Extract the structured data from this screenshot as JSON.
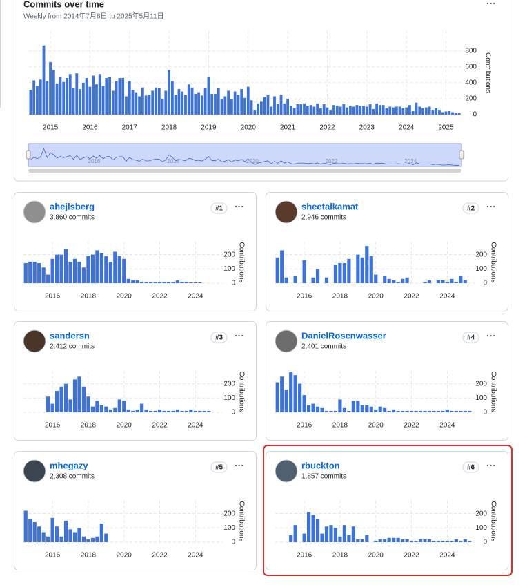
{
  "chart_data": [
    {
      "type": "bar",
      "title": "Commits over time",
      "subtitle": "Weekly from 2014年7月6日 to 2025年5月11日",
      "y_label": "Contributions",
      "color": "#3d72d8",
      "ylim": [
        0,
        1050
      ],
      "yticks": [
        0,
        200,
        400,
        600,
        800
      ],
      "grid": true,
      "navigator_ticks": [
        "2016",
        "2018",
        "2020",
        "2022",
        "2024"
      ],
      "categories": [
        null,
        null,
        null,
        null,
        null,
        null,
        "2015",
        null,
        null,
        null,
        null,
        null,
        null,
        null,
        null,
        null,
        null,
        null,
        "2016",
        null,
        null,
        null,
        null,
        null,
        null,
        null,
        null,
        null,
        null,
        null,
        "2017",
        null,
        null,
        null,
        null,
        null,
        null,
        null,
        null,
        null,
        null,
        null,
        "2018",
        null,
        null,
        null,
        null,
        null,
        null,
        null,
        null,
        null,
        null,
        null,
        "2019",
        null,
        null,
        null,
        null,
        null,
        null,
        null,
        null,
        null,
        null,
        null,
        "2020",
        null,
        null,
        null,
        null,
        null,
        null,
        null,
        null,
        null,
        null,
        null,
        "2021",
        null,
        null,
        null,
        null,
        null,
        null,
        null,
        null,
        null,
        null,
        null,
        "2022",
        null,
        null,
        null,
        null,
        null,
        null,
        null,
        null,
        null,
        null,
        null,
        "2023",
        null,
        null,
        null,
        null,
        null,
        null,
        null,
        null,
        null,
        null,
        null,
        "2024",
        null,
        null,
        null,
        null,
        null,
        null,
        null,
        null,
        null,
        null,
        null,
        "2025",
        null,
        null,
        null,
        null
      ],
      "values": [
        310,
        430,
        360,
        440,
        870,
        420,
        660,
        560,
        390,
        470,
        410,
        460,
        510,
        330,
        520,
        320,
        400,
        460,
        350,
        490,
        380,
        510,
        360,
        460,
        470,
        300,
        420,
        460,
        460,
        230,
        420,
        310,
        280,
        230,
        340,
        240,
        250,
        300,
        340,
        330,
        200,
        300,
        560,
        420,
        250,
        320,
        290,
        250,
        380,
        340,
        260,
        280,
        240,
        330,
        470,
        260,
        260,
        330,
        190,
        230,
        300,
        190,
        290,
        250,
        320,
        210,
        350,
        180,
        60,
        140,
        170,
        220,
        250,
        100,
        230,
        130,
        250,
        140,
        200,
        110,
        80,
        130,
        130,
        140,
        110,
        120,
        100,
        140,
        80,
        130,
        90,
        60,
        120,
        110,
        100,
        130,
        90,
        110,
        100,
        120,
        110,
        110,
        100,
        130,
        70,
        140,
        120,
        120,
        80,
        100,
        90,
        100,
        100,
        80,
        90,
        120,
        50,
        150,
        100,
        80,
        90,
        100,
        60,
        80,
        60,
        30,
        40,
        50,
        30,
        20,
        20
      ]
    },
    {
      "type": "bar",
      "title": "ahejlsberg",
      "subtitle": "3,860 commits",
      "rank": "#1",
      "y_label": "Contributions",
      "color": "#3d72d8",
      "ylim": [
        0,
        290
      ],
      "yticks": [
        0,
        100,
        200
      ],
      "grid": true,
      "categories": [
        null,
        null,
        null,
        null,
        null,
        null,
        "2016",
        null,
        null,
        null,
        null,
        null,
        null,
        null,
        "2018",
        null,
        null,
        null,
        null,
        null,
        null,
        null,
        "2020",
        null,
        null,
        null,
        null,
        null,
        null,
        null,
        "2022",
        null,
        null,
        null,
        null,
        null,
        null,
        null,
        "2024",
        null,
        null,
        null,
        null,
        null
      ],
      "values": [
        140,
        150,
        150,
        140,
        110,
        60,
        170,
        200,
        200,
        240,
        150,
        170,
        150,
        110,
        190,
        200,
        230,
        210,
        190,
        150,
        220,
        190,
        170,
        30,
        20,
        20,
        10,
        10,
        10,
        10,
        10,
        10,
        10,
        10,
        20,
        10,
        10,
        5,
        5,
        5,
        0,
        0,
        0,
        0
      ]
    },
    {
      "type": "bar",
      "title": "sheetalkamat",
      "subtitle": "2,946 commits",
      "rank": "#2",
      "y_label": "Contributions",
      "color": "#3d72d8",
      "ylim": [
        0,
        290
      ],
      "yticks": [
        0,
        100,
        200
      ],
      "grid": true,
      "categories": [
        null,
        null,
        null,
        null,
        null,
        null,
        "2016",
        null,
        null,
        null,
        null,
        null,
        null,
        null,
        "2018",
        null,
        null,
        null,
        null,
        null,
        null,
        null,
        "2020",
        null,
        null,
        null,
        null,
        null,
        null,
        null,
        "2022",
        null,
        null,
        null,
        null,
        null,
        null,
        null,
        "2024",
        null,
        null,
        null,
        null,
        null
      ],
      "values": [
        180,
        230,
        40,
        0,
        50,
        0,
        160,
        0,
        40,
        100,
        0,
        40,
        0,
        130,
        140,
        140,
        170,
        0,
        200,
        180,
        260,
        190,
        60,
        0,
        50,
        30,
        20,
        10,
        30,
        40,
        0,
        0,
        0,
        10,
        20,
        0,
        20,
        20,
        10,
        30,
        10,
        50,
        20,
        0
      ]
    },
    {
      "type": "bar",
      "title": "sandersn",
      "subtitle": "2,412 commits",
      "rank": "#3",
      "y_label": "Contributions",
      "color": "#3d72d8",
      "ylim": [
        0,
        290
      ],
      "yticks": [
        0,
        100,
        200
      ],
      "grid": true,
      "categories": [
        null,
        null,
        null,
        null,
        null,
        null,
        "2016",
        null,
        null,
        null,
        null,
        null,
        null,
        null,
        "2018",
        null,
        null,
        null,
        null,
        null,
        null,
        null,
        "2020",
        null,
        null,
        null,
        null,
        null,
        null,
        null,
        "2022",
        null,
        null,
        null,
        null,
        null,
        null,
        null,
        "2024",
        null,
        null,
        null,
        null,
        null
      ],
      "values": [
        0,
        0,
        0,
        0,
        0,
        110,
        60,
        150,
        180,
        200,
        90,
        230,
        250,
        180,
        110,
        40,
        80,
        50,
        40,
        20,
        30,
        90,
        80,
        20,
        10,
        20,
        60,
        20,
        10,
        10,
        20,
        10,
        10,
        10,
        20,
        10,
        10,
        20,
        10,
        10,
        10,
        10,
        0,
        0
      ]
    },
    {
      "type": "bar",
      "title": "DanielRosenwasser",
      "subtitle": "2,401 commits",
      "rank": "#4",
      "y_label": "Contributions",
      "color": "#3d72d8",
      "ylim": [
        0,
        290
      ],
      "yticks": [
        0,
        100,
        200
      ],
      "grid": true,
      "categories": [
        null,
        null,
        null,
        null,
        null,
        null,
        "2016",
        null,
        null,
        null,
        null,
        null,
        null,
        null,
        "2018",
        null,
        null,
        null,
        null,
        null,
        null,
        null,
        "2020",
        null,
        null,
        null,
        null,
        null,
        null,
        null,
        "2022",
        null,
        null,
        null,
        null,
        null,
        null,
        null,
        "2024",
        null,
        null,
        null,
        null,
        null
      ],
      "values": [
        210,
        250,
        160,
        280,
        260,
        200,
        120,
        50,
        60,
        40,
        30,
        10,
        10,
        10,
        90,
        30,
        10,
        80,
        80,
        50,
        50,
        40,
        20,
        40,
        30,
        10,
        20,
        10,
        10,
        10,
        10,
        10,
        10,
        10,
        10,
        10,
        10,
        10,
        20,
        10,
        10,
        10,
        10,
        10
      ]
    },
    {
      "type": "bar",
      "title": "mhegazy",
      "subtitle": "2,308 commits",
      "rank": "#5",
      "y_label": "Contributions",
      "color": "#3d72d8",
      "ylim": [
        0,
        290
      ],
      "yticks": [
        0,
        100,
        200
      ],
      "grid": true,
      "categories": [
        null,
        null,
        null,
        null,
        null,
        null,
        "2016",
        null,
        null,
        null,
        null,
        null,
        null,
        null,
        "2018",
        null,
        null,
        null,
        null,
        null,
        null,
        null,
        "2020",
        null,
        null,
        null,
        null,
        null,
        null,
        null,
        "2022",
        null,
        null,
        null,
        null,
        null,
        null,
        null,
        "2024",
        null,
        null,
        null,
        null,
        null
      ],
      "values": [
        220,
        160,
        140,
        110,
        70,
        40,
        170,
        110,
        40,
        150,
        90,
        70,
        100,
        40,
        20,
        30,
        40,
        130,
        60,
        0,
        0,
        0,
        0,
        0,
        0,
        0,
        0,
        0,
        0,
        0,
        0,
        0,
        0,
        0,
        0,
        0,
        0,
        0,
        0,
        0,
        0,
        0,
        0,
        0
      ]
    },
    {
      "type": "bar",
      "title": "rbuckton",
      "subtitle": "1,857 commits",
      "rank": "#6",
      "y_label": "Contributions",
      "color": "#3d72d8",
      "ylim": [
        0,
        290
      ],
      "yticks": [
        0,
        100,
        200
      ],
      "grid": true,
      "categories": [
        null,
        null,
        null,
        null,
        null,
        null,
        "2016",
        null,
        null,
        null,
        null,
        null,
        null,
        null,
        "2018",
        null,
        null,
        null,
        null,
        null,
        null,
        null,
        "2020",
        null,
        null,
        null,
        null,
        null,
        null,
        null,
        "2022",
        null,
        null,
        null,
        null,
        null,
        null,
        null,
        "2024",
        null,
        null,
        null,
        null,
        null
      ],
      "values": [
        0,
        0,
        0,
        50,
        120,
        0,
        60,
        210,
        190,
        160,
        60,
        110,
        120,
        100,
        40,
        120,
        50,
        110,
        20,
        20,
        50,
        0,
        10,
        20,
        20,
        30,
        30,
        30,
        20,
        20,
        10,
        10,
        20,
        20,
        20,
        10,
        10,
        10,
        10,
        10,
        20,
        10,
        20,
        10
      ]
    }
  ]
}
